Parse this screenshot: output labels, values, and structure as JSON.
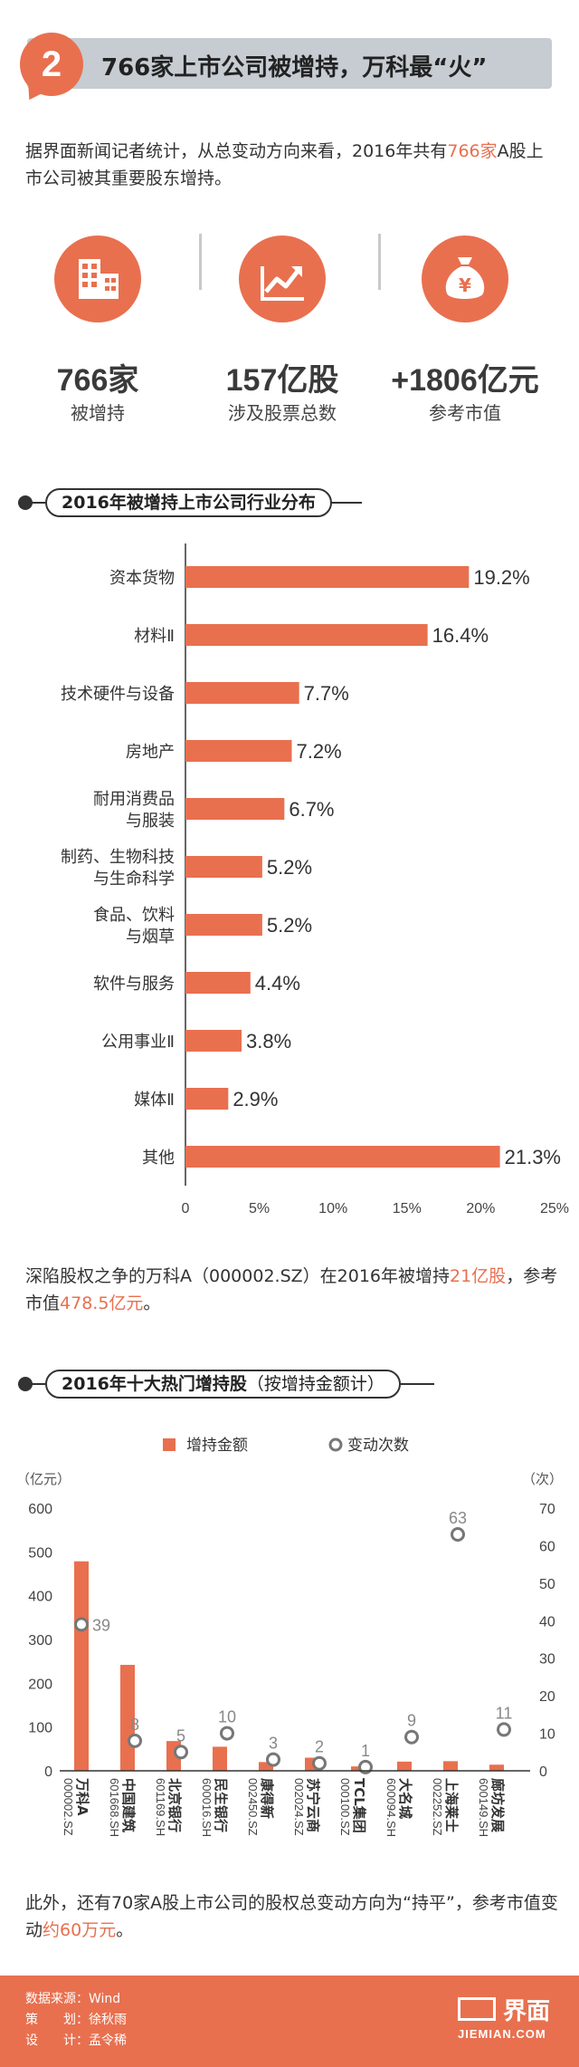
{
  "header": {
    "number": "2",
    "title": "766家上市公司被增持，万科最“火”"
  },
  "intro": {
    "part1": "据界面新闻记者统计，从总变动方向来看，2016年共有",
    "highlight": "766家",
    "part2": "A股上市公司被其重要股东增持。"
  },
  "stats": [
    {
      "icon": "building-icon",
      "value": "766家",
      "label": "被增持"
    },
    {
      "icon": "chart-growth-icon",
      "value": "157亿股",
      "label": "涉及股票总数"
    },
    {
      "icon": "money-bag-icon",
      "value": "+1806亿元",
      "label": "参考市值"
    }
  ],
  "colors": {
    "accent": "#e8704f",
    "circle_outline": "#777777"
  },
  "section1": {
    "title": "2016年被增持上市公司行业分布"
  },
  "section2": {
    "title": "2016年十大热门增持股",
    "subtitle": "（按增持金额计）"
  },
  "vanke_text": {
    "part1": "深陷股权之争的万科A（000002.SZ）在2016年被增持",
    "hl1": "21亿股",
    "part2": "，参考市值",
    "hl2": "478.5亿元",
    "part3": "。"
  },
  "closing_text": {
    "part1": "此外，还有70家A股上市公司的股权总变动方向为“持平”，参考市值变动",
    "hl": "约60万元",
    "part2": "。"
  },
  "footer": {
    "source_label": "数据来源：",
    "source_value": "Wind",
    "planner_label": "策　　划：",
    "planner_value": "徐秋雨",
    "designer_label": "设　　计：",
    "designer_value": "孟令稀",
    "logo_text": "界面",
    "logo_sub": "JIEMIAN.COM"
  },
  "chart_data": [
    {
      "type": "bar",
      "orientation": "horizontal",
      "categories": [
        "资本货物",
        "材料Ⅱ",
        "技术硬件与设备",
        "房地产",
        "耐用消费品与服装",
        "制药、生物科技与生命科学",
        "食品、饮料与烟草",
        "软件与服务",
        "公用事业Ⅱ",
        "媒体Ⅱ",
        "其他"
      ],
      "category_lines": [
        [
          "资本货物"
        ],
        [
          "材料Ⅱ"
        ],
        [
          "技术硬件与设备"
        ],
        [
          "房地产"
        ],
        [
          "耐用消费品",
          "与服装"
        ],
        [
          "制药、生物科技",
          "与生命科学"
        ],
        [
          "食品、饮料",
          "与烟草"
        ],
        [
          "软件与服务"
        ],
        [
          "公用事业Ⅱ"
        ],
        [
          "媒体Ⅱ"
        ],
        [
          "其他"
        ]
      ],
      "values": [
        19.2,
        16.4,
        7.7,
        7.2,
        6.7,
        5.2,
        5.2,
        4.4,
        3.8,
        2.9,
        21.3
      ],
      "value_labels": [
        "19.2%",
        "16.4%",
        "7.7%",
        "7.2%",
        "6.7%",
        "5.2%",
        "5.2%",
        "4.4%",
        "3.8%",
        "2.9%",
        "21.3%"
      ],
      "xlim": [
        0,
        25
      ],
      "xticks": [
        "0",
        "5%",
        "10%",
        "15%",
        "20%",
        "25%"
      ],
      "color": "#e8704f",
      "grid": false
    },
    {
      "type": "bar",
      "categories": [
        "万科A",
        "中国建筑",
        "北京银行",
        "民生银行",
        "康得新",
        "苏宁云商",
        "TCL集团",
        "大名城",
        "上海莱士",
        "廊坊发展"
      ],
      "codes": [
        "000002.SZ",
        "601668.SH",
        "601169.SH",
        "600016.SH",
        "002450.SZ",
        "002024.SZ",
        "000100.SZ",
        "600094.SH",
        "002252.SZ",
        "600149.SH"
      ],
      "series": [
        {
          "name": "增持金额",
          "type": "bar",
          "axis": "left",
          "values": [
            478.5,
            242,
            68,
            55,
            20,
            30,
            10,
            21,
            22,
            14
          ]
        },
        {
          "name": "变动次数",
          "type": "scatter",
          "axis": "right",
          "values": [
            39,
            8,
            5,
            10,
            3,
            2,
            1,
            9,
            63,
            11
          ]
        }
      ],
      "left_axis": {
        "unit": "（亿元）",
        "ylim": [
          0,
          600
        ],
        "ticks": [
          "0",
          "100",
          "200",
          "300",
          "400",
          "500",
          "600"
        ]
      },
      "right_axis": {
        "unit": "（次）",
        "ylim": [
          0,
          70
        ],
        "ticks": [
          "0",
          "10",
          "20",
          "30",
          "40",
          "50",
          "60",
          "70"
        ]
      },
      "legend_position": "top",
      "grid": false
    }
  ]
}
